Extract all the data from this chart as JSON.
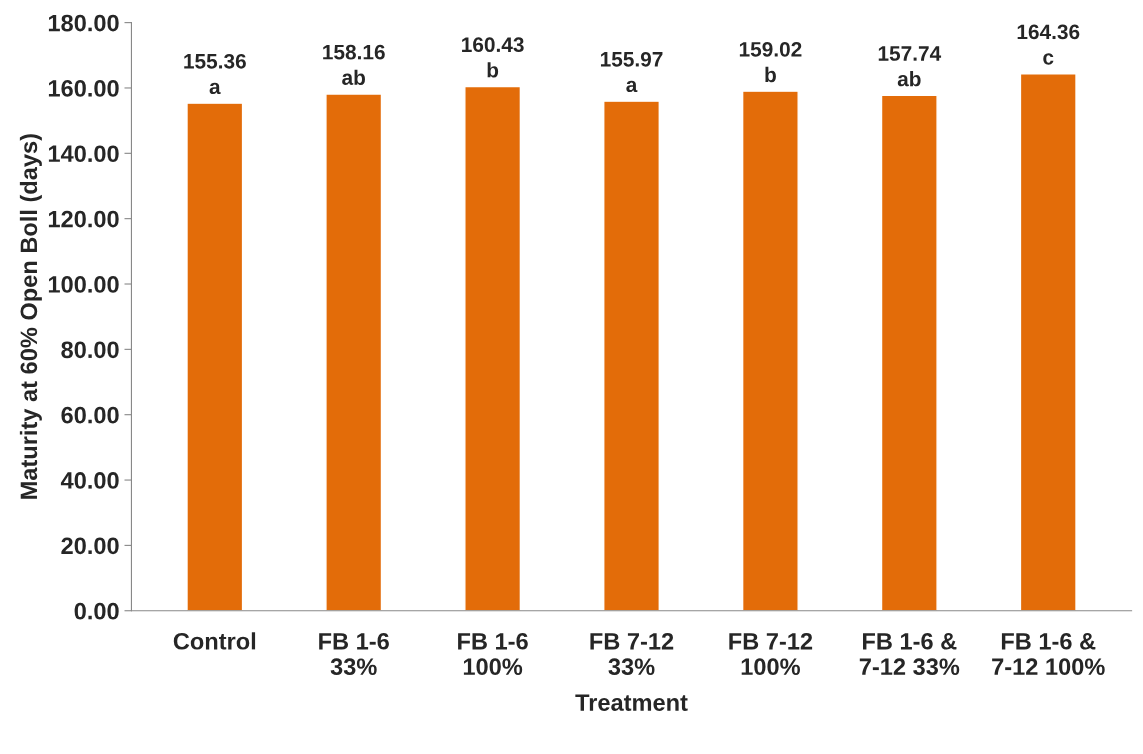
{
  "chart_data": {
    "type": "bar",
    "xlabel": "Treatment",
    "ylabel": "Maturity at 60% Open Boll (days)",
    "categories": [
      "Control",
      "FB 1-6\n33%",
      "FB 1-6\n100%",
      "FB 7-12\n33%",
      "FB 7-12\n100%",
      "FB 1-6 &\n7-12 33%",
      "FB 1-6 &\n7-12 100%"
    ],
    "values": [
      155.36,
      158.16,
      160.43,
      155.97,
      159.02,
      157.74,
      164.36
    ],
    "value_labels": [
      "155.36\na",
      "158.16\nab",
      "160.43\nb",
      "155.97\na",
      "159.02\nb",
      "157.74\nab",
      "164.36\nc"
    ],
    "color": "#e36c09",
    "ylim": [
      0,
      180
    ],
    "yticks": [
      {
        "value": 0,
        "label": "0.00"
      },
      {
        "value": 20,
        "label": "20.00"
      },
      {
        "value": 40,
        "label": "40.00"
      },
      {
        "value": 60,
        "label": "60.00"
      },
      {
        "value": 80,
        "label": "80.00"
      },
      {
        "value": 100,
        "label": "100.00"
      },
      {
        "value": 120,
        "label": "120.00"
      },
      {
        "value": 140,
        "label": "140.00"
      },
      {
        "value": 160,
        "label": "160.00"
      },
      {
        "value": 180,
        "label": "180.00"
      }
    ],
    "grid": false,
    "legend": false
  }
}
